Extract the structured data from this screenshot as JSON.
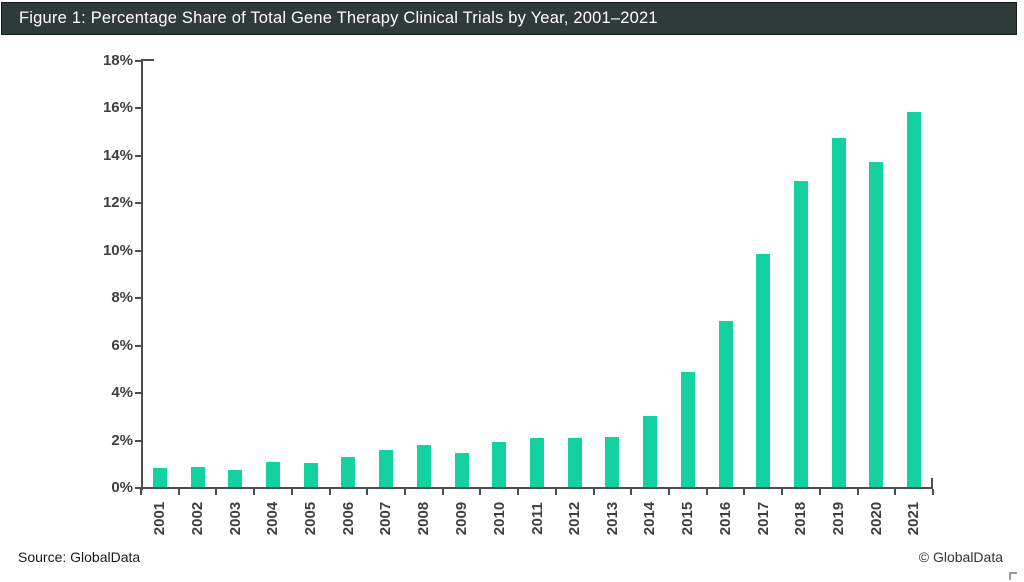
{
  "header": {
    "title": "Figure 1: Percentage Share of Total Gene Therapy Clinical Trials by Year, 2001–2021"
  },
  "footer": {
    "source": "Source: GlobalData",
    "copyright": "© GlobalData"
  },
  "colors": {
    "header_background": "#2e3b39",
    "header_text": "#ffffff",
    "bar": "#14d1a0",
    "axis": "#4d4d4d",
    "axis_label": "#3f3f3f",
    "background": "#ffffff"
  },
  "chart_data": {
    "type": "bar",
    "title": "Figure 1: Percentage Share of Total Gene Therapy Clinical Trials by Year, 2001–2021",
    "categories": [
      "2001",
      "2002",
      "2003",
      "2004",
      "2005",
      "2006",
      "2007",
      "2008",
      "2009",
      "2010",
      "2011",
      "2012",
      "2013",
      "2014",
      "2015",
      "2016",
      "2017",
      "2018",
      "2019",
      "2020",
      "2021"
    ],
    "values": [
      0.8,
      0.85,
      0.7,
      1.05,
      1.0,
      1.25,
      1.55,
      1.75,
      1.45,
      1.9,
      2.05,
      2.05,
      2.1,
      3.0,
      4.85,
      7.0,
      9.8,
      12.9,
      14.7,
      13.7,
      15.8
    ],
    "xlabel": "",
    "ylabel": "",
    "ylim": [
      0,
      18
    ],
    "ytick_step": 2,
    "ytick_suffix": "%",
    "grid": false,
    "legend": false,
    "bar_color": "#14d1a0"
  }
}
